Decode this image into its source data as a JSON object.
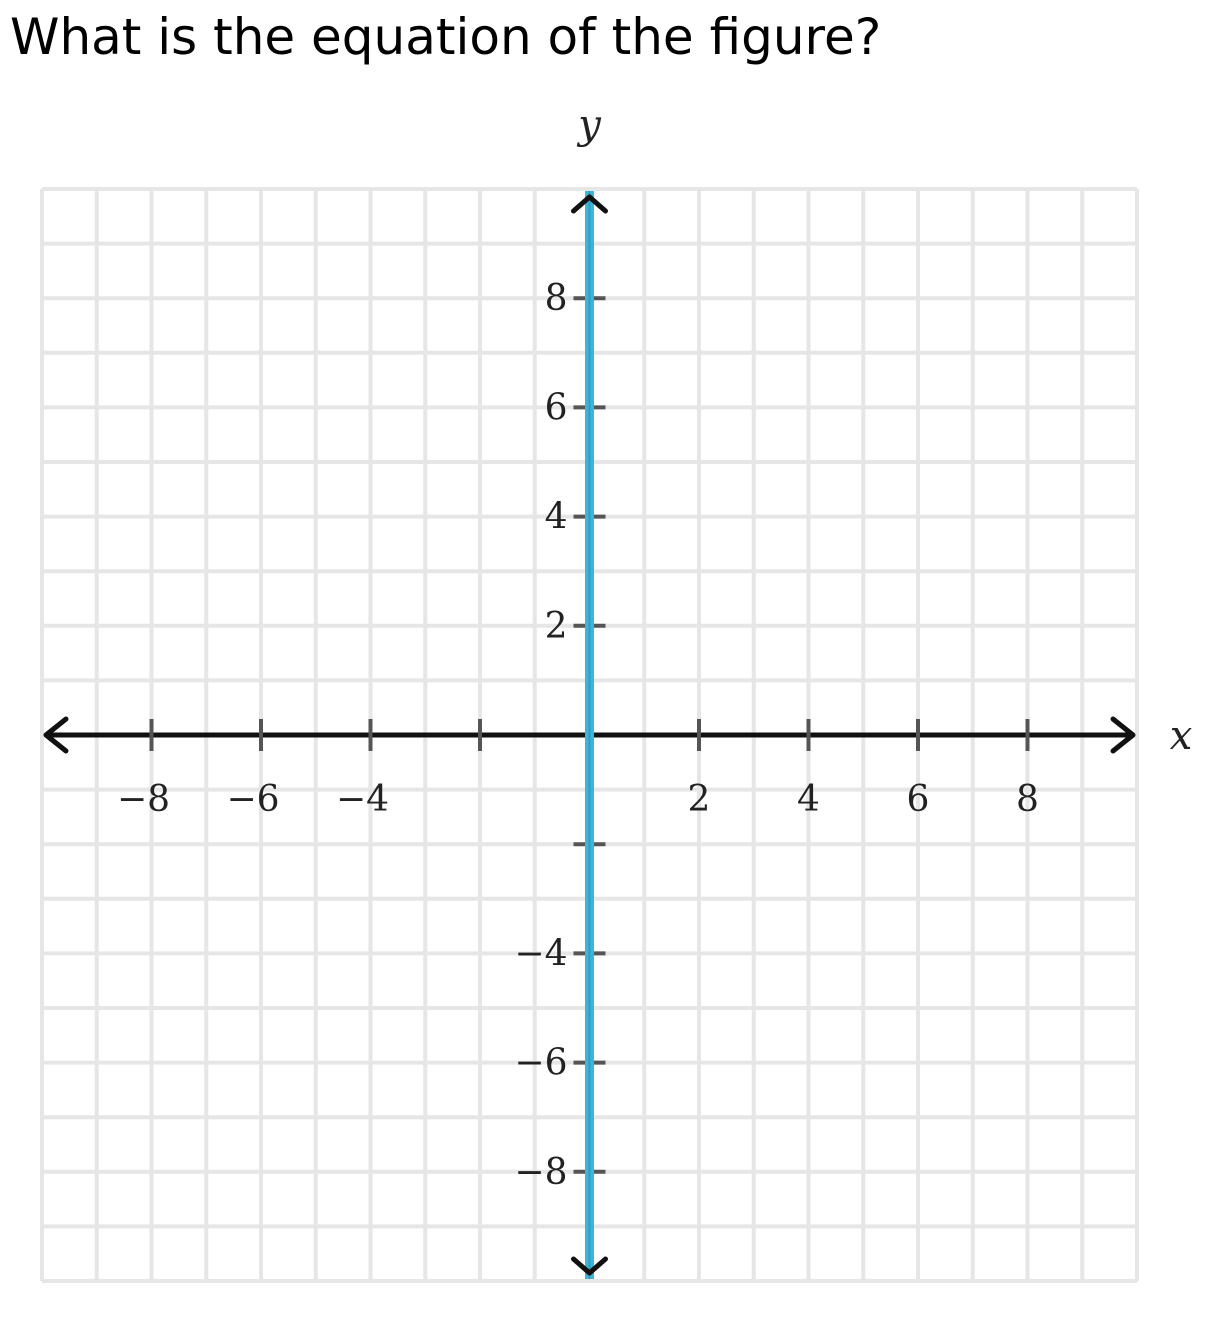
{
  "question": "What is the equation of the figure?",
  "colors": {
    "grid": "#e6e6e6",
    "axis": "#111111",
    "line": "#3db5d8",
    "text": "#222222"
  },
  "chart_data": {
    "type": "line",
    "xlabel": "x",
    "ylabel": "y",
    "xlim": [
      -10,
      10
    ],
    "ylim": [
      -10,
      10
    ],
    "grid": true,
    "grid_step": 1,
    "x_ticks": [
      -8,
      -6,
      -4,
      -2,
      2,
      4,
      6,
      8
    ],
    "x_tick_labels": [
      {
        "value": -8,
        "label": "−8"
      },
      {
        "value": -6,
        "label": "−6"
      },
      {
        "value": -4,
        "label": "−4"
      },
      {
        "value": 2,
        "label": "2"
      },
      {
        "value": 4,
        "label": "4"
      },
      {
        "value": 6,
        "label": "6"
      },
      {
        "value": 8,
        "label": "8"
      }
    ],
    "y_ticks": [
      8,
      6,
      4,
      2,
      -2,
      -4,
      -6,
      -8
    ],
    "y_tick_labels": [
      {
        "value": 8,
        "label": "8"
      },
      {
        "value": 6,
        "label": "6"
      },
      {
        "value": 4,
        "label": "4"
      },
      {
        "value": 2,
        "label": "2"
      },
      {
        "value": -4,
        "label": "−4"
      },
      {
        "value": -6,
        "label": "−6"
      },
      {
        "value": -8,
        "label": "−8"
      }
    ],
    "series": [
      {
        "kind": "vertical",
        "x": [
          0,
          0
        ],
        "y": [
          -10,
          10
        ],
        "arrows": true
      }
    ]
  }
}
